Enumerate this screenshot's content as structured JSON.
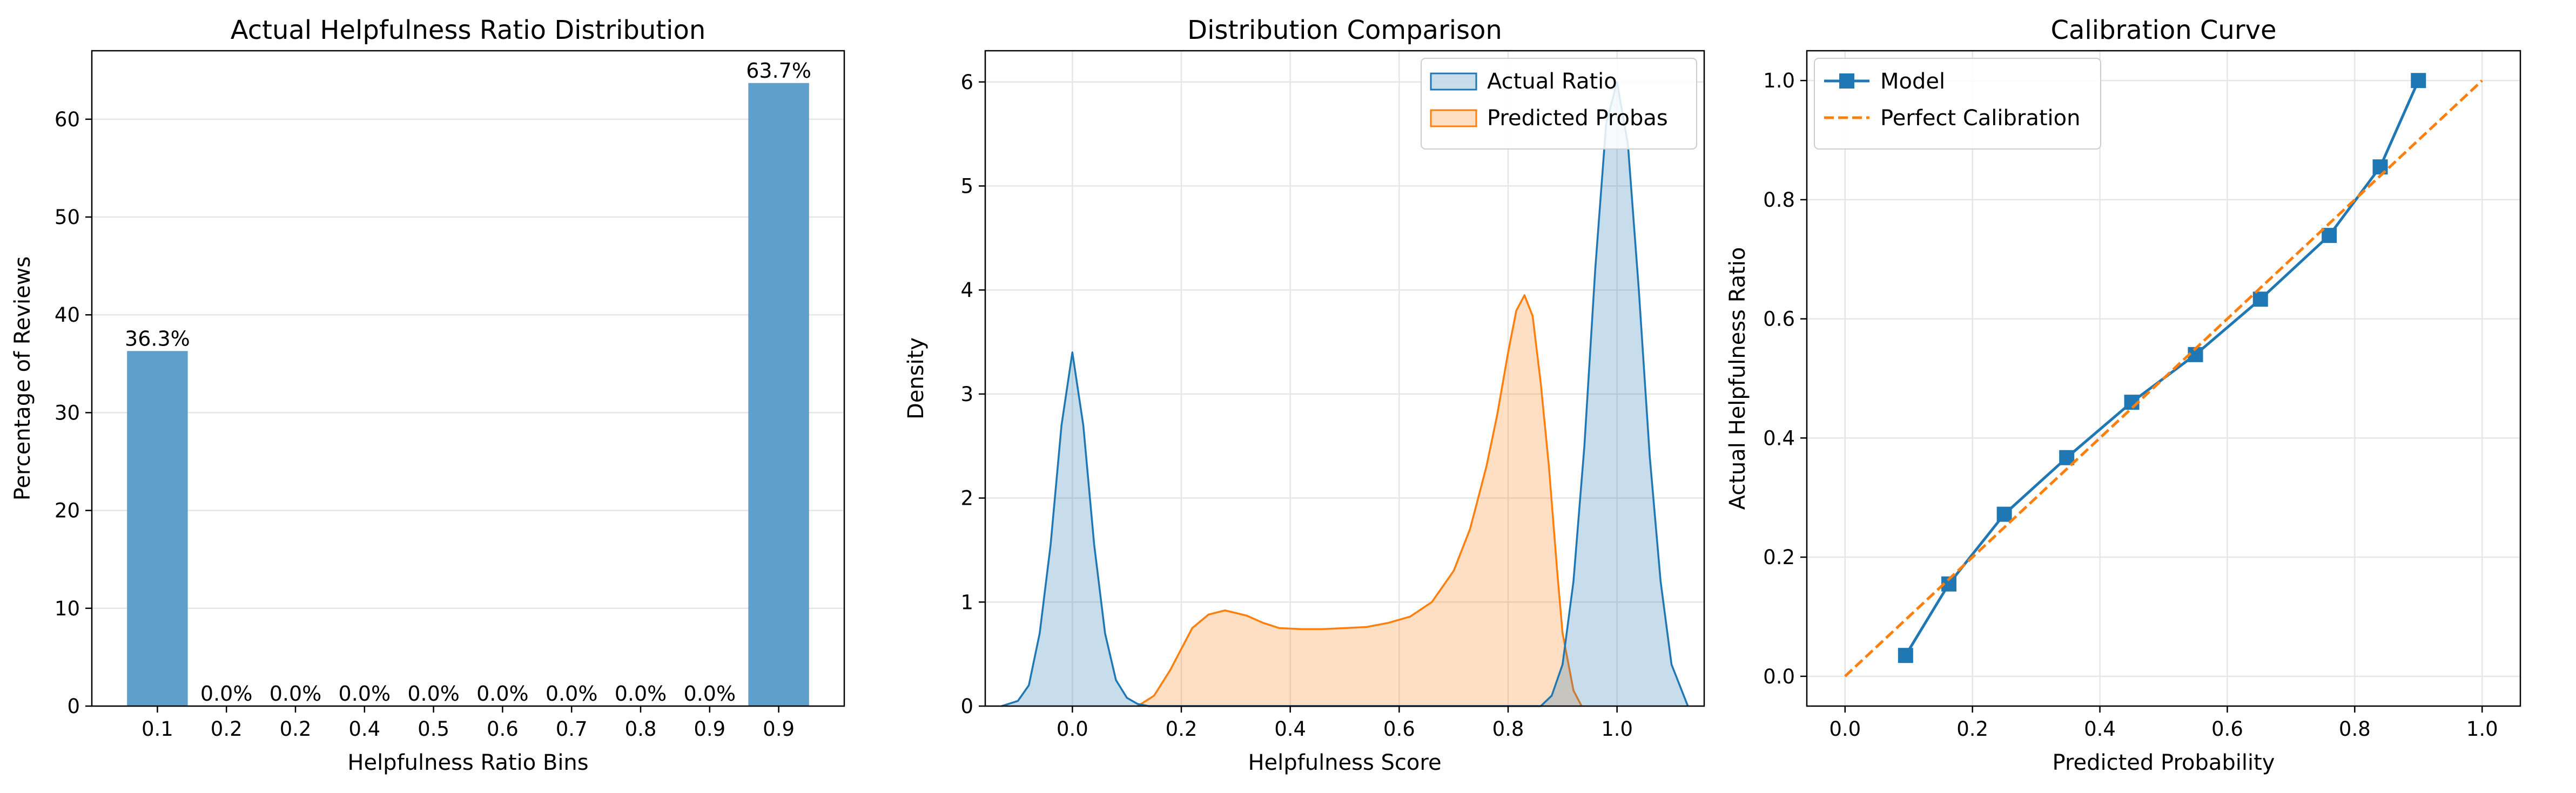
{
  "colors": {
    "blue": "#1f77b4",
    "orange": "#ff7f0e",
    "bar": "#5f9fcc",
    "grid": "#e6e6e6"
  },
  "chart_data": [
    {
      "type": "bar",
      "title": "Actual Helpfulness Ratio Distribution",
      "xlabel": "Helpfulness Ratio Bins",
      "ylabel": "Percentage of Reviews",
      "categories": [
        "0.1",
        "0.2",
        "0.2",
        "0.4",
        "0.5",
        "0.6",
        "0.7",
        "0.8",
        "0.9",
        "0.9"
      ],
      "values": [
        36.3,
        0.0,
        0.0,
        0.0,
        0.0,
        0.0,
        0.0,
        0.0,
        0.0,
        63.7
      ],
      "value_labels": [
        "36.3%",
        "0.0%",
        "0.0%",
        "0.0%",
        "0.0%",
        "0.0%",
        "0.0%",
        "0.0%",
        "0.0%",
        "63.7%"
      ],
      "ylim": [
        0,
        67
      ],
      "yticks": [
        0,
        10,
        20,
        30,
        40,
        50,
        60
      ],
      "grid": "y"
    },
    {
      "type": "area",
      "title": "Distribution Comparison",
      "xlabel": "Helpfulness Score",
      "ylabel": "Density",
      "xlim": [
        -0.16,
        1.16
      ],
      "ylim": [
        0,
        6.3
      ],
      "xticks": [
        0.0,
        0.2,
        0.4,
        0.6,
        0.8,
        1.0
      ],
      "xtick_labels": [
        "0.0",
        "0.2",
        "0.4",
        "0.6",
        "0.8",
        "1.0"
      ],
      "yticks": [
        0,
        1,
        2,
        3,
        4,
        5,
        6
      ],
      "legend_position": "top-right",
      "grid": true,
      "series": [
        {
          "name": "Actual Ratio",
          "x": [
            -0.13,
            -0.1,
            -0.08,
            -0.06,
            -0.04,
            -0.02,
            0.0,
            0.02,
            0.04,
            0.06,
            0.08,
            0.1,
            0.12,
            0.14,
            0.86,
            0.88,
            0.9,
            0.92,
            0.94,
            0.96,
            0.98,
            1.0,
            1.02,
            1.04,
            1.06,
            1.08,
            1.1,
            1.13
          ],
          "y": [
            0.0,
            0.05,
            0.2,
            0.7,
            1.55,
            2.7,
            3.4,
            2.7,
            1.55,
            0.7,
            0.25,
            0.08,
            0.02,
            0.0,
            0.0,
            0.1,
            0.4,
            1.2,
            2.5,
            4.2,
            5.6,
            6.0,
            5.4,
            4.0,
            2.4,
            1.2,
            0.4,
            0.0
          ]
        },
        {
          "name": "Predicted Probas",
          "x": [
            0.12,
            0.15,
            0.18,
            0.2,
            0.22,
            0.25,
            0.28,
            0.32,
            0.35,
            0.38,
            0.42,
            0.46,
            0.5,
            0.54,
            0.58,
            0.62,
            0.66,
            0.7,
            0.73,
            0.76,
            0.78,
            0.8,
            0.815,
            0.83,
            0.845,
            0.86,
            0.875,
            0.89,
            0.9,
            0.92,
            0.935
          ],
          "y": [
            0.0,
            0.1,
            0.35,
            0.55,
            0.75,
            0.88,
            0.92,
            0.87,
            0.8,
            0.75,
            0.74,
            0.74,
            0.75,
            0.76,
            0.8,
            0.86,
            1.0,
            1.3,
            1.7,
            2.3,
            2.8,
            3.4,
            3.8,
            3.95,
            3.75,
            3.1,
            2.3,
            1.3,
            0.7,
            0.15,
            0.0
          ]
        }
      ]
    },
    {
      "type": "line",
      "title": "Calibration Curve",
      "xlabel": "Predicted Probability",
      "ylabel": "Actual Helpfulness Ratio",
      "xlim": [
        -0.06,
        1.06
      ],
      "ylim": [
        -0.05,
        1.05
      ],
      "xticks": [
        0.0,
        0.2,
        0.4,
        0.6,
        0.8,
        1.0
      ],
      "xtick_labels": [
        "0.0",
        "0.2",
        "0.4",
        "0.6",
        "0.8",
        "1.0"
      ],
      "yticks": [
        0.0,
        0.2,
        0.4,
        0.6,
        0.8,
        1.0
      ],
      "ytick_labels": [
        "0.0",
        "0.2",
        "0.4",
        "0.6",
        "0.8",
        "1.0"
      ],
      "legend_position": "top-left",
      "grid": true,
      "series": [
        {
          "name": "Model",
          "marker": "square",
          "x": [
            0.095,
            0.163,
            0.25,
            0.348,
            0.45,
            0.55,
            0.652,
            0.76,
            0.84,
            0.9
          ],
          "y": [
            0.035,
            0.155,
            0.272,
            0.367,
            0.46,
            0.54,
            0.633,
            0.74,
            0.855,
            1.0
          ]
        },
        {
          "name": "Perfect Calibration",
          "style": "dashed",
          "x": [
            0.0,
            1.0
          ],
          "y": [
            0.0,
            1.0
          ]
        }
      ]
    }
  ]
}
